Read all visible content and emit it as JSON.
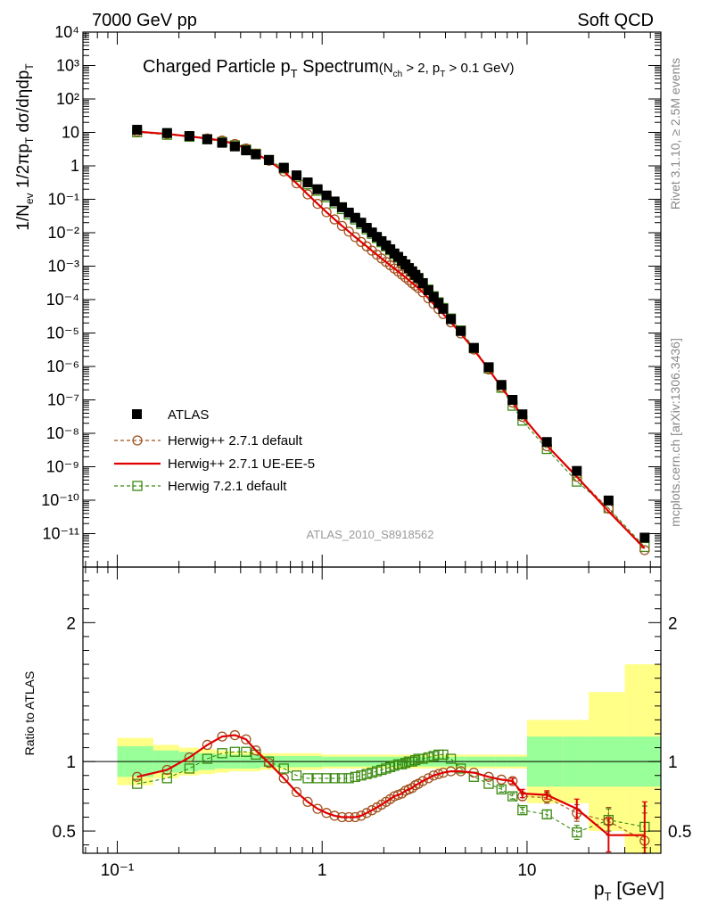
{
  "header": {
    "left": "7000 GeV pp",
    "right": "Soft QCD"
  },
  "side_labels": {
    "rivet": "Rivet 3.1.10, ≥ 2.5M events",
    "mcplots": "mcplots.cern.ch [arXiv:1306.3436]"
  },
  "title": {
    "main": "Charged Particle p",
    "main_sub": "T",
    "main_tail": " Spectrum",
    "cut_open": "(N",
    "cut_sub1": "ch",
    "cut_mid": " > 2, p",
    "cut_sub2": "T",
    "cut_tail": " > 0.1 GeV)"
  },
  "analysis_id": "ATLAS_2010_S8918562",
  "axes": {
    "upper_ylabel": "1/N_ev 1/2πp_T dσ/dηdp_T",
    "lower_ylabel": "Ratio to ATLAS",
    "xlabel": "p_T  [GeV]"
  },
  "colors": {
    "atlas": "#000000",
    "herwig_default": "#a0521e",
    "herwig_ueee5": "#e00000",
    "herwig7": "#3a8a10",
    "band_inner": "#99ff99",
    "band_outer": "#ffff88"
  },
  "chart_data": [
    {
      "type": "scatter",
      "panel": "main",
      "x_scale": "log",
      "y_scale": "log",
      "xlim": [
        0.068,
        45
      ],
      "ylim": [
        1e-12,
        10000.0
      ],
      "x_ticks": [
        0.1,
        1,
        10
      ],
      "x_tick_labels": [
        "10⁻¹",
        "1",
        "10"
      ],
      "y_tick_labels": [
        "10⁻¹¹",
        "10⁻¹⁰",
        "10⁻⁹",
        "10⁻⁸",
        "10⁻⁷",
        "10⁻⁶",
        "10⁻⁵",
        "10⁻⁴",
        "10⁻³",
        "10⁻²",
        "10⁻¹",
        "1",
        "10",
        "10²",
        "10³",
        "10⁴"
      ],
      "x": [
        0.125,
        0.175,
        0.225,
        0.275,
        0.325,
        0.375,
        0.425,
        0.475,
        0.55,
        0.65,
        0.75,
        0.85,
        0.95,
        1.05,
        1.15,
        1.25,
        1.35,
        1.45,
        1.55,
        1.65,
        1.75,
        1.85,
        1.95,
        2.05,
        2.15,
        2.25,
        2.35,
        2.45,
        2.55,
        2.65,
        2.75,
        2.85,
        2.95,
        3.1,
        3.3,
        3.5,
        3.7,
        3.9,
        4.25,
        4.75,
        5.5,
        6.5,
        7.5,
        8.5,
        9.5,
        12.5,
        17.5,
        25,
        37.5
      ],
      "series": [
        {
          "name": "ATLAS",
          "style": "filled-square",
          "values": [
            12,
            9.6,
            7.8,
            6.2,
            4.9,
            3.8,
            2.9,
            2.2,
            1.5,
            0.88,
            0.52,
            0.32,
            0.2,
            0.13,
            0.086,
            0.058,
            0.04,
            0.028,
            0.02,
            0.014,
            0.0102,
            0.0075,
            0.0056,
            0.0042,
            0.0032,
            0.0024,
            0.0019,
            0.00145,
            0.00113,
            0.00088,
            0.0007,
            0.00055,
            0.00044,
            0.00031,
            0.00019,
            0.00012,
            7.9e-05,
            5.3e-05,
            2.6e-05,
            1.15e-05,
            3.6e-06,
            9.5e-07,
            2.8e-07,
            1e-07,
            3.7e-08,
            5.5e-09,
            7.5e-10,
            9.8e-11,
            7.6e-12
          ]
        },
        {
          "name": "Herwig++ 2.7.1 default",
          "style": "open-circle-dashed",
          "values": [
            10.6,
            9.0,
            7.6,
            6.6,
            5.7,
            4.5,
            3.3,
            2.3,
            1.42,
            0.68,
            0.3,
            0.14,
            0.073,
            0.041,
            0.025,
            0.016,
            0.0108,
            0.0074,
            0.0053,
            0.0039,
            0.0029,
            0.0022,
            0.0017,
            0.00134,
            0.00106,
            0.00085,
            0.00069,
            0.00056,
            0.00046,
            0.00038,
            0.00031,
            0.00026,
            0.00022,
            0.000165,
            0.000109,
            7.4e-05,
            5.2e-05,
            3.7e-05,
            2.08e-05,
            9.7e-06,
            3.2e-06,
            8.1e-07,
            2.4e-07,
            8.4e-08,
            3.1e-08,
            4.1e-09,
            5e-10,
            5.6e-11,
            3.2e-12
          ]
        },
        {
          "name": "Herwig++ 2.7.1 UE-EE-5",
          "style": "solid-line",
          "values": [
            10.6,
            9.0,
            7.6,
            6.6,
            5.7,
            4.5,
            3.3,
            2.3,
            1.42,
            0.68,
            0.3,
            0.14,
            0.073,
            0.041,
            0.025,
            0.016,
            0.0108,
            0.0074,
            0.0053,
            0.0039,
            0.0029,
            0.0022,
            0.0017,
            0.00134,
            0.00106,
            0.00085,
            0.00069,
            0.00056,
            0.00046,
            0.00038,
            0.00031,
            0.00026,
            0.00022,
            0.000165,
            0.000109,
            7.4e-05,
            5.2e-05,
            3.7e-05,
            2.08e-05,
            9.7e-06,
            3.2e-06,
            8.1e-07,
            2.4e-07,
            8.5e-08,
            3.2e-08,
            4.3e-09,
            5e-10,
            4.6e-11,
            3.6e-12
          ]
        },
        {
          "name": "Herwig 7.2.1 default",
          "style": "open-square-dashed",
          "values": [
            10.1,
            8.5,
            7.4,
            6.3,
            5.2,
            4.1,
            3.1,
            2.3,
            1.5,
            0.84,
            0.47,
            0.28,
            0.18,
            0.115,
            0.076,
            0.051,
            0.035,
            0.025,
            0.018,
            0.0127,
            0.0093,
            0.0069,
            0.0052,
            0.0039,
            0.003,
            0.0023,
            0.0018,
            0.00139,
            0.00109,
            0.00086,
            0.00069,
            0.00054,
            0.00044,
            0.00031,
            0.0002,
            0.000126,
            8.3e-05,
            5.6e-05,
            2.72e-05,
            1.19e-05,
            3.5e-06,
            8.7e-07,
            2.3e-07,
            6.7e-08,
            2.4e-08,
            3.4e-09,
            3.6e-10,
            5.8e-11,
            4e-12
          ]
        }
      ]
    },
    {
      "type": "line",
      "panel": "ratio",
      "x_scale": "log",
      "xlim": [
        0.068,
        45
      ],
      "ylim": [
        0.34,
        2.4
      ],
      "y_ticks": [
        0.5,
        1,
        2
      ],
      "y_tick_labels": [
        "0.5",
        "1",
        "2"
      ],
      "bands": {
        "edges": [
          0.1,
          0.15,
          0.2,
          0.25,
          0.3,
          0.35,
          0.4,
          0.45,
          0.5,
          1,
          2,
          3,
          4,
          5,
          6,
          7,
          8,
          9,
          10,
          15,
          20,
          30,
          45
        ],
        "inner_lo": [
          0.89,
          0.92,
          0.93,
          0.94,
          0.95,
          0.95,
          0.95,
          0.95,
          0.96,
          0.965,
          0.965,
          0.965,
          0.965,
          0.965,
          0.965,
          0.965,
          0.965,
          0.965,
          0.82,
          0.82,
          0.82,
          0.82
        ],
        "inner_hi": [
          1.11,
          1.08,
          1.07,
          1.06,
          1.05,
          1.05,
          1.05,
          1.05,
          1.04,
          1.035,
          1.035,
          1.035,
          1.035,
          1.035,
          1.035,
          1.035,
          1.035,
          1.035,
          1.18,
          1.18,
          1.18,
          1.18
        ],
        "outer_lo": [
          0.83,
          0.88,
          0.9,
          0.91,
          0.92,
          0.93,
          0.93,
          0.93,
          0.94,
          0.95,
          0.95,
          0.95,
          0.95,
          0.95,
          0.95,
          0.95,
          0.95,
          0.95,
          0.7,
          0.7,
          0.5,
          0.3
        ],
        "outer_hi": [
          1.17,
          1.12,
          1.1,
          1.09,
          1.08,
          1.07,
          1.07,
          1.07,
          1.06,
          1.05,
          1.05,
          1.05,
          1.05,
          1.05,
          1.05,
          1.05,
          1.05,
          1.05,
          1.3,
          1.3,
          1.5,
          1.7
        ]
      },
      "reference_line": 1,
      "x": [
        0.125,
        0.175,
        0.225,
        0.275,
        0.325,
        0.375,
        0.425,
        0.475,
        0.55,
        0.65,
        0.75,
        0.85,
        0.95,
        1.05,
        1.15,
        1.25,
        1.35,
        1.45,
        1.55,
        1.65,
        1.75,
        1.85,
        1.95,
        2.05,
        2.15,
        2.25,
        2.35,
        2.45,
        2.55,
        2.65,
        2.75,
        2.85,
        2.95,
        3.1,
        3.3,
        3.5,
        3.7,
        3.9,
        4.25,
        4.75,
        5.5,
        6.5,
        7.5,
        8.5,
        9.5,
        12.5,
        17.5,
        25,
        37.5
      ],
      "series": [
        {
          "name": "Herwig++ 2.7.1 default",
          "style": "open-circle-dashed",
          "values": [
            0.89,
            0.94,
            1.03,
            1.12,
            1.18,
            1.19,
            1.16,
            1.08,
            0.99,
            0.88,
            0.78,
            0.71,
            0.66,
            0.63,
            0.61,
            0.6,
            0.6,
            0.6,
            0.61,
            0.63,
            0.65,
            0.67,
            0.69,
            0.71,
            0.73,
            0.75,
            0.76,
            0.77,
            0.79,
            0.8,
            0.81,
            0.83,
            0.84,
            0.86,
            0.88,
            0.9,
            0.91,
            0.92,
            0.93,
            0.93,
            0.92,
            0.89,
            0.87,
            0.86,
            0.75,
            0.74,
            0.63,
            0.57,
            0.43
          ],
          "errors": [
            0,
            0,
            0,
            0,
            0,
            0,
            0,
            0,
            0,
            0,
            0,
            0,
            0,
            0,
            0,
            0,
            0,
            0,
            0,
            0,
            0,
            0,
            0,
            0,
            0,
            0,
            0,
            0,
            0,
            0,
            0,
            0,
            0,
            0,
            0,
            0,
            0,
            0,
            0,
            0,
            0,
            0,
            0,
            0.02,
            0.03,
            0.04,
            0.06,
            0.1,
            0.2
          ]
        },
        {
          "name": "Herwig++ 2.7.1 UE-EE-5",
          "style": "solid-line",
          "values": [
            0.89,
            0.94,
            1.03,
            1.12,
            1.18,
            1.19,
            1.16,
            1.08,
            0.99,
            0.88,
            0.78,
            0.71,
            0.66,
            0.63,
            0.61,
            0.6,
            0.6,
            0.6,
            0.61,
            0.63,
            0.65,
            0.67,
            0.69,
            0.71,
            0.73,
            0.75,
            0.76,
            0.77,
            0.79,
            0.8,
            0.81,
            0.83,
            0.84,
            0.86,
            0.88,
            0.9,
            0.91,
            0.92,
            0.93,
            0.93,
            0.92,
            0.89,
            0.87,
            0.86,
            0.77,
            0.76,
            0.66,
            0.47,
            0.47
          ],
          "errors": [
            0,
            0,
            0,
            0,
            0,
            0,
            0,
            0,
            0,
            0,
            0,
            0,
            0,
            0,
            0,
            0,
            0,
            0,
            0,
            0,
            0,
            0,
            0,
            0,
            0,
            0,
            0,
            0,
            0,
            0,
            0,
            0,
            0,
            0,
            0,
            0,
            0,
            0,
            0,
            0,
            0,
            0,
            0,
            0.02,
            0.03,
            0.03,
            0.07,
            0.12,
            0.24
          ]
        },
        {
          "name": "Herwig 7.2.1 default",
          "style": "open-square-dashed",
          "values": [
            0.84,
            0.88,
            0.95,
            1.02,
            1.06,
            1.07,
            1.07,
            1.05,
            1.0,
            0.95,
            0.9,
            0.88,
            0.88,
            0.88,
            0.88,
            0.88,
            0.88,
            0.89,
            0.9,
            0.91,
            0.92,
            0.93,
            0.94,
            0.95,
            0.96,
            0.97,
            0.98,
            0.98,
            0.99,
            1.0,
            1.0,
            1.01,
            1.02,
            1.02,
            1.03,
            1.04,
            1.05,
            1.05,
            1.02,
            0.95,
            0.89,
            0.84,
            0.8,
            0.75,
            0.65,
            0.62,
            0.49,
            0.58,
            0.53
          ],
          "errors": [
            0,
            0,
            0,
            0,
            0,
            0,
            0,
            0,
            0,
            0,
            0,
            0,
            0,
            0,
            0,
            0,
            0,
            0,
            0,
            0,
            0,
            0,
            0,
            0,
            0,
            0,
            0,
            0,
            0,
            0,
            0,
            0,
            0,
            0,
            0,
            0,
            0,
            0,
            0,
            0,
            0,
            0,
            0.02,
            0.02,
            0.02,
            0.03,
            0.05,
            0.08,
            0.15
          ]
        }
      ]
    }
  ]
}
